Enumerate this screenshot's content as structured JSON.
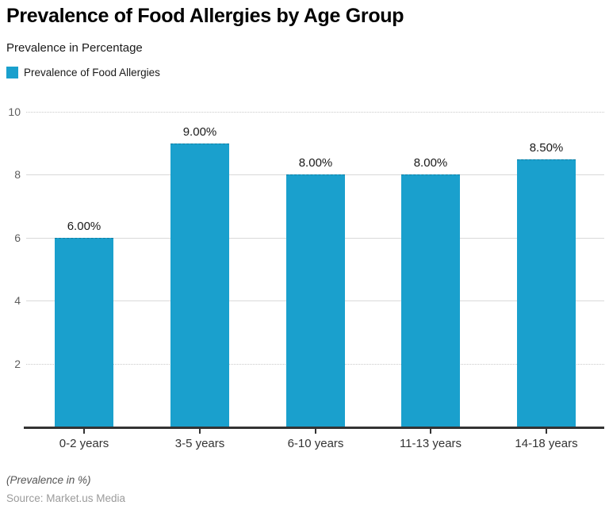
{
  "title": "Prevalence of Food Allergies by Age Group",
  "subtitle": "Prevalence in Percentage",
  "legend": {
    "label": "Prevalence of Food Allergies"
  },
  "footer": {
    "note": "(Prevalence in %)",
    "source": "Source: Market.us Media"
  },
  "colors": {
    "bar": "#1aa0cd",
    "grid": "#d9d9d9",
    "grid_dotted": "#c9c9c9",
    "axis": "#333333",
    "title": "#000000",
    "y_label": "#5e5e5e",
    "x_label": "#333333",
    "value_label": "#191919",
    "note": "#555555",
    "source": "#9b9b9b"
  },
  "chart_data": {
    "type": "bar",
    "title": "Prevalence of Food Allergies by Age Group",
    "subtitle": "Prevalence in Percentage",
    "series_name": "Prevalence of Food Allergies",
    "categories": [
      "0-2 years",
      "3-5 years",
      "6-10 years",
      "11-13 years",
      "14-18 years"
    ],
    "values": [
      6.0,
      9.0,
      8.0,
      8.0,
      8.5
    ],
    "value_labels": [
      "6.00%",
      "9.00%",
      "8.00%",
      "8.00%",
      "8.50%"
    ],
    "xlabel": "",
    "ylabel": "Prevalence in Percentage",
    "unit_note": "(Prevalence in %)",
    "ylim": [
      0,
      10
    ],
    "yticks": [
      2,
      4,
      6,
      8,
      10
    ],
    "dotted_gridlines": [
      2,
      10
    ],
    "grid": "horizontal",
    "legend_position": "top-left",
    "bar_color": "#1aa0cd"
  }
}
